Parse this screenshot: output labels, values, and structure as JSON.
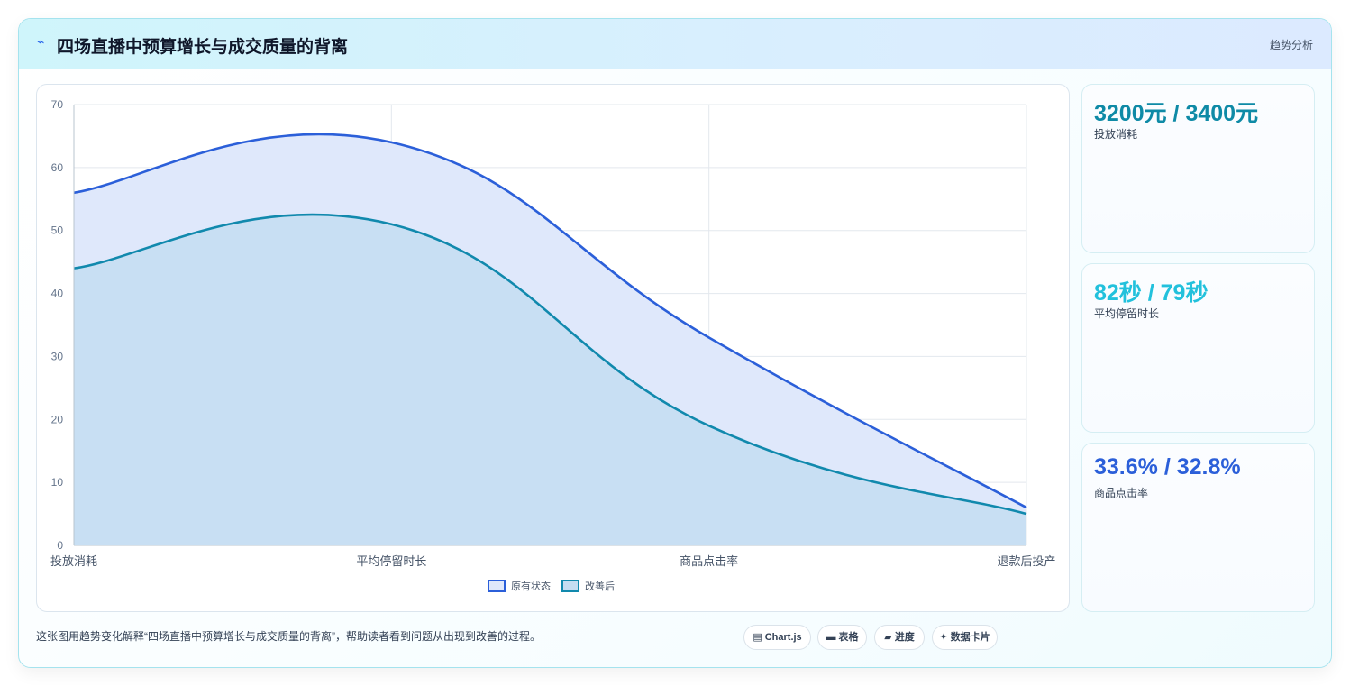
{
  "header": {
    "icon": "trend-icon",
    "icon_glyph": "⌁",
    "title": "四场直播中预算增长与成交质量的背离",
    "badge": "趋势分析"
  },
  "chart_data": {
    "type": "area",
    "categories": [
      "投放消耗",
      "平均停留时长",
      "商品点击率",
      "退款后投产"
    ],
    "series": [
      {
        "name": "原有状态",
        "values": [
          56,
          64,
          33,
          6
        ],
        "color": "#2b5fd9",
        "fill": "#dfe8fb"
      },
      {
        "name": "改善后",
        "values": [
          44,
          51,
          19,
          5
        ],
        "color": "#1189ad",
        "fill": "#c4ddf1"
      }
    ],
    "ylim": [
      0,
      70
    ],
    "yticks": [
      0,
      10,
      20,
      30,
      40,
      50,
      60,
      70
    ],
    "grid": true,
    "legend": "bottom"
  },
  "kpis": [
    {
      "value": "3200元 / 3400元",
      "label": "投放消耗",
      "color": "#0e8aa6"
    },
    {
      "value": "82秒 / 79秒",
      "label": "平均停留时长",
      "color": "#22c1dc"
    },
    {
      "value": "33.6% / 32.8%",
      "label": "商品点击率",
      "color": "#2b5fd9"
    }
  ],
  "footer": {
    "text": "这张图用趋势变化解释“四场直播中预算增长与成交质量的背离”，帮助读者看到问题从出现到改善的过程。",
    "chips": [
      {
        "icon": "chart-icon",
        "glyph": "▤",
        "label": "Chart.js"
      },
      {
        "icon": "table-icon",
        "glyph": "▬",
        "label": "表格"
      },
      {
        "icon": "progress-icon",
        "glyph": "▰",
        "label": "进度"
      },
      {
        "icon": "card-icon",
        "glyph": "✦",
        "label": "数据卡片"
      }
    ]
  }
}
